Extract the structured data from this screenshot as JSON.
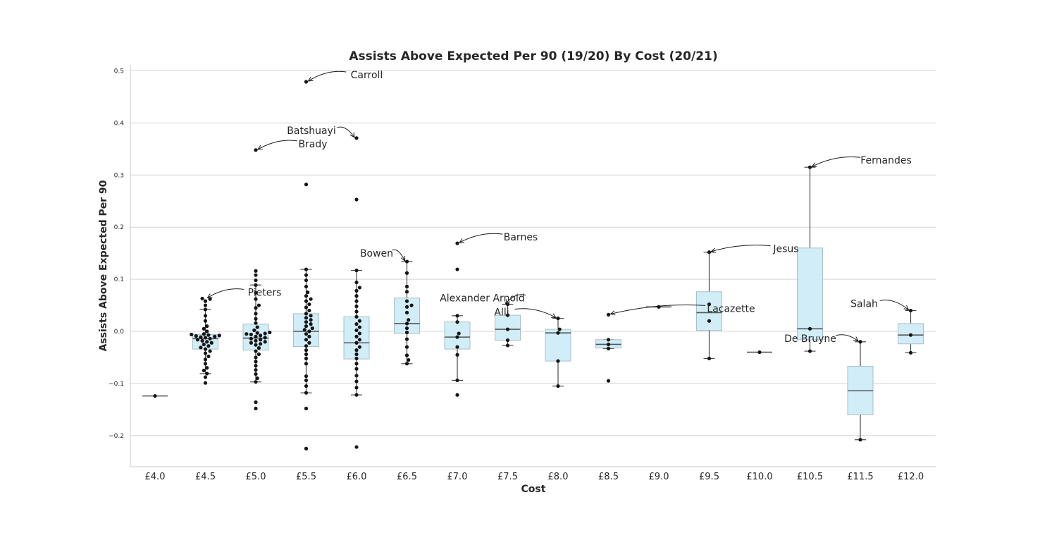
{
  "chart_data": {
    "type": "box",
    "title": "Assists Above Expected Per 90 (19/20) By Cost (20/21)",
    "xlabel": "Cost",
    "ylabel": "Assists Above Expected Per 90",
    "ylim": [
      -0.26,
      0.51
    ],
    "yticks": [
      -0.2,
      -0.1,
      0.0,
      0.1,
      0.2,
      0.3,
      0.4,
      0.5
    ],
    "ytick_labels": [
      "−0.2",
      "−0.1",
      "0.0",
      "0.1",
      "0.2",
      "0.3",
      "0.4",
      "0.5"
    ],
    "grid": "horizontal",
    "box_color": "#cfecf7",
    "point_color": "#151515",
    "categories": [
      "£4.0",
      "£4.5",
      "£5.0",
      "£5.5",
      "£6.0",
      "£6.5",
      "£7.0",
      "£7.5",
      "£8.0",
      "£8.5",
      "£9.0",
      "£9.5",
      "£10.0",
      "£10.5",
      "£11.5",
      "£12.0"
    ],
    "boxes": [
      {
        "category": "£4.0",
        "q1": -0.124,
        "median": -0.124,
        "q3": -0.124,
        "whisker_low": -0.124,
        "whisker_high": -0.124
      },
      {
        "category": "£4.5",
        "q1": -0.034,
        "median": -0.014,
        "q3": -0.006,
        "whisker_low": -0.081,
        "whisker_high": 0.042
      },
      {
        "category": "£5.0",
        "q1": -0.036,
        "median": -0.013,
        "q3": 0.014,
        "whisker_low": -0.097,
        "whisker_high": 0.089
      },
      {
        "category": "£5.5",
        "q1": -0.029,
        "median": 0.0,
        "q3": 0.034,
        "whisker_low": -0.118,
        "whisker_high": 0.119
      },
      {
        "category": "£6.0",
        "q1": -0.053,
        "median": -0.022,
        "q3": 0.028,
        "whisker_low": -0.122,
        "whisker_high": 0.117
      },
      {
        "category": "£6.5",
        "q1": -0.004,
        "median": 0.015,
        "q3": 0.064,
        "whisker_low": -0.062,
        "whisker_high": 0.134
      },
      {
        "category": "£7.0",
        "q1": -0.034,
        "median": -0.011,
        "q3": 0.018,
        "whisker_low": -0.094,
        "whisker_high": 0.03
      },
      {
        "category": "£7.5",
        "q1": -0.017,
        "median": 0.004,
        "q3": 0.031,
        "whisker_low": -0.027,
        "whisker_high": 0.052
      },
      {
        "category": "£8.0",
        "q1": -0.057,
        "median": -0.003,
        "q3": 0.004,
        "whisker_low": -0.105,
        "whisker_high": 0.025
      },
      {
        "category": "£8.5",
        "q1": -0.032,
        "median": -0.025,
        "q3": -0.016,
        "whisker_low": -0.033,
        "whisker_high": -0.016
      },
      {
        "category": "£9.0",
        "q1": 0.047,
        "median": 0.047,
        "q3": 0.047,
        "whisker_low": 0.047,
        "whisker_high": 0.047
      },
      {
        "category": "£9.5",
        "q1": 0.002,
        "median": 0.036,
        "q3": 0.076,
        "whisker_low": -0.052,
        "whisker_high": 0.152
      },
      {
        "category": "£10.0",
        "q1": -0.04,
        "median": -0.04,
        "q3": -0.04,
        "whisker_low": -0.04,
        "whisker_high": -0.04
      },
      {
        "category": "£10.5",
        "q1": -0.016,
        "median": 0.005,
        "q3": 0.16,
        "whisker_low": -0.038,
        "whisker_high": 0.315
      },
      {
        "category": "£11.5",
        "q1": -0.16,
        "median": -0.114,
        "q3": -0.067,
        "whisker_low": -0.208,
        "whisker_high": -0.02
      },
      {
        "category": "£12.0",
        "q1": -0.024,
        "median": -0.007,
        "q3": 0.015,
        "whisker_low": -0.041,
        "whisker_high": 0.04
      }
    ],
    "points": [
      {
        "category": "£4.0",
        "values": [
          -0.124
        ]
      },
      {
        "category": "£4.5",
        "values": [
          -0.099,
          -0.088,
          -0.081,
          -0.075,
          -0.07,
          -0.062,
          -0.054,
          -0.048,
          -0.042,
          -0.038,
          -0.034,
          -0.031,
          -0.028,
          -0.025,
          -0.022,
          -0.02,
          -0.018,
          -0.016,
          -0.014,
          -0.012,
          -0.011,
          -0.01,
          -0.009,
          -0.008,
          -0.007,
          -0.006,
          -0.005,
          0.0,
          0.005,
          0.01,
          0.02,
          0.03,
          0.042,
          0.05,
          0.058,
          0.062,
          0.063
        ]
      },
      {
        "category": "£5.0",
        "values": [
          -0.148,
          -0.136,
          -0.097,
          -0.09,
          -0.082,
          -0.074,
          -0.066,
          -0.058,
          -0.05,
          -0.044,
          -0.038,
          -0.032,
          -0.026,
          -0.024,
          -0.022,
          -0.02,
          -0.018,
          -0.016,
          -0.014,
          -0.012,
          -0.01,
          -0.008,
          -0.006,
          -0.005,
          -0.004,
          -0.003,
          -0.002,
          0.002,
          0.008,
          0.016,
          0.024,
          0.034,
          0.045,
          0.05,
          0.062,
          0.074,
          0.089,
          0.098,
          0.108,
          0.116,
          0.348
        ]
      },
      {
        "category": "£5.5",
        "values": [
          -0.225,
          -0.148,
          -0.118,
          -0.105,
          -0.094,
          -0.086,
          -0.062,
          -0.052,
          -0.044,
          -0.036,
          -0.028,
          -0.022,
          -0.016,
          -0.01,
          -0.005,
          0.0,
          0.003,
          0.006,
          0.01,
          0.014,
          0.018,
          0.022,
          0.026,
          0.03,
          0.034,
          0.04,
          0.046,
          0.052,
          0.058,
          0.062,
          0.068,
          0.075,
          0.086,
          0.098,
          0.108,
          0.119,
          0.282,
          0.479
        ]
      },
      {
        "category": "£6.0",
        "values": [
          -0.222,
          -0.122,
          -0.108,
          -0.096,
          -0.085,
          -0.072,
          -0.062,
          -0.052,
          -0.044,
          -0.036,
          -0.03,
          -0.022,
          -0.016,
          -0.01,
          -0.004,
          0.002,
          0.008,
          0.014,
          0.02,
          0.028,
          0.038,
          0.048,
          0.058,
          0.068,
          0.078,
          0.084,
          0.094,
          0.117,
          0.253,
          0.371
        ]
      },
      {
        "category": "£6.5",
        "values": [
          -0.062,
          -0.055,
          -0.046,
          -0.03,
          -0.015,
          -0.002,
          0.006,
          0.015,
          0.022,
          0.036,
          0.047,
          0.05,
          0.058,
          0.076,
          0.086,
          0.112,
          0.134
        ]
      },
      {
        "category": "£7.0",
        "values": [
          -0.122,
          -0.094,
          -0.045,
          -0.03,
          -0.011,
          -0.004,
          0.018,
          0.03,
          0.119,
          0.169
        ]
      },
      {
        "category": "£7.5",
        "values": [
          -0.027,
          -0.017,
          0.004,
          0.031,
          0.052
        ]
      },
      {
        "category": "£8.0",
        "values": [
          -0.105,
          -0.057,
          -0.003,
          0.004,
          0.025
        ]
      },
      {
        "category": "£8.5",
        "values": [
          -0.095,
          -0.033,
          -0.025,
          -0.016,
          0.032
        ]
      },
      {
        "category": "£9.0",
        "values": [
          0.047
        ]
      },
      {
        "category": "£9.5",
        "values": [
          -0.052,
          0.02,
          0.052,
          0.152
        ]
      },
      {
        "category": "£10.0",
        "values": [
          -0.04
        ]
      },
      {
        "category": "£10.5",
        "values": [
          -0.038,
          0.005,
          0.315
        ]
      },
      {
        "category": "£11.5",
        "values": [
          -0.208,
          -0.02
        ]
      },
      {
        "category": "£12.0",
        "values": [
          -0.041,
          -0.007,
          0.04
        ]
      }
    ],
    "annotations": [
      {
        "text": "Carroll",
        "category": "£5.5",
        "value": 0.479
      },
      {
        "text": "Batshuayi",
        "category": "£6.0",
        "value": 0.371
      },
      {
        "text": "Brady",
        "category": "£5.0",
        "value": 0.348
      },
      {
        "text": "Fernandes",
        "category": "£10.5",
        "value": 0.315
      },
      {
        "text": "Barnes",
        "category": "£7.0",
        "value": 0.169
      },
      {
        "text": "Jesus",
        "category": "£9.5",
        "value": 0.152
      },
      {
        "text": "Bowen",
        "category": "£6.5",
        "value": 0.134
      },
      {
        "text": "Pieters",
        "category": "£4.5",
        "value": 0.063
      },
      {
        "text": "Alexander Arnold",
        "category": "£7.5",
        "value": 0.052
      },
      {
        "text": "Lacazette",
        "category": "£8.5",
        "value": 0.032
      },
      {
        "text": "Alli",
        "category": "£8.0",
        "value": 0.025
      },
      {
        "text": "Salah",
        "category": "£12.0",
        "value": 0.04
      },
      {
        "text": "De Bruyne",
        "category": "£11.5",
        "value": -0.02
      }
    ]
  }
}
